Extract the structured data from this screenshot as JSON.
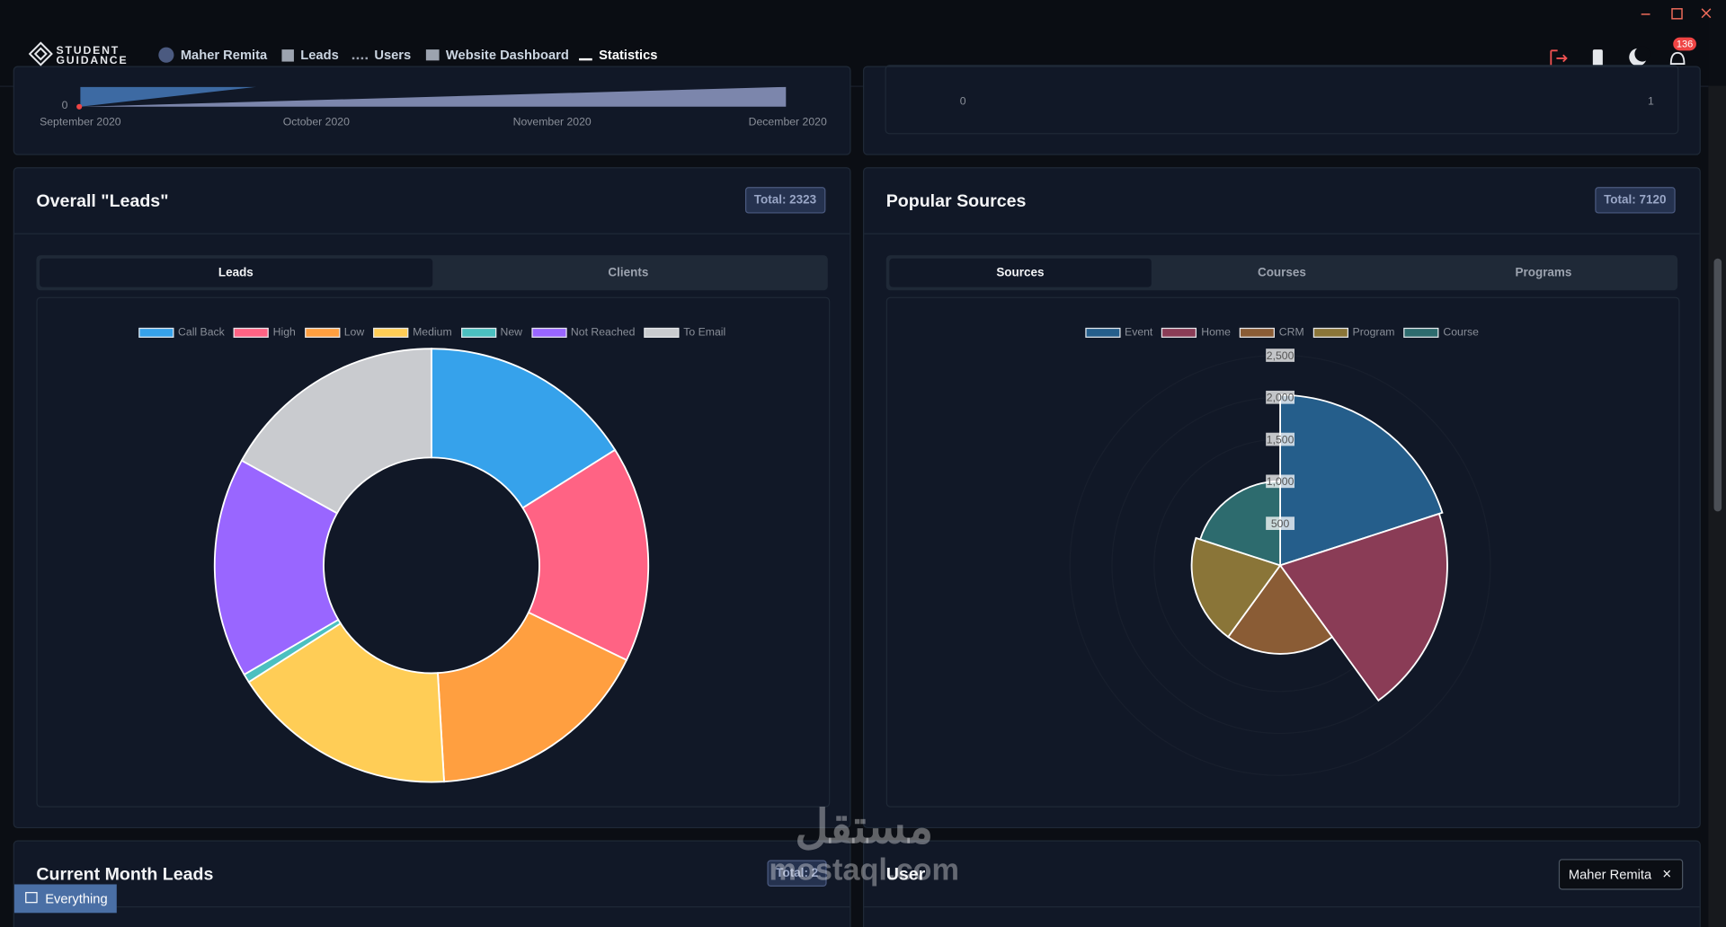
{
  "nav": {
    "brand_top": "STUDENT",
    "brand_bottom": "GUIDANCE",
    "items": [
      "Maher Remita",
      "Leads",
      "Users",
      "Website Dashboard",
      "Statistics"
    ],
    "notifications": "136"
  },
  "top_left": {
    "x_labels": [
      "September 2020",
      "October 2020",
      "November 2020",
      "December 2020"
    ],
    "y_label": "0"
  },
  "top_right": {
    "x_labels": [
      "0",
      "1"
    ]
  },
  "leads_panel": {
    "title": "Overall \"Leads\"",
    "total": "Total: 2323",
    "tabs": [
      "Leads",
      "Clients"
    ],
    "chart_data": {
      "type": "doughnut",
      "categories": [
        "Call Back",
        "High",
        "Low",
        "Medium",
        "New",
        "Not Reached",
        "To Email"
      ],
      "values": [
        373,
        375,
        392,
        392,
        15,
        382,
        394
      ],
      "colors": [
        "#36a2eb",
        "#ff6384",
        "#ff9f40",
        "#ffcd56",
        "#4bc0c0",
        "#9966ff",
        "#c9cbcf"
      ]
    }
  },
  "sources_panel": {
    "title": "Popular Sources",
    "total": "Total: 7120",
    "tabs": [
      "Sources",
      "Courses",
      "Programs"
    ],
    "chart_data": {
      "type": "polarArea",
      "categories": [
        "Event",
        "Home",
        "CRM",
        "Program",
        "Course"
      ],
      "values": [
        2027,
        1987,
        1053,
        1053,
        1000
      ],
      "colors": [
        "#255e8b",
        "#8a3c56",
        "#8a5c35",
        "#8a7538",
        "#2d6b6e"
      ],
      "ylim": [
        0,
        2500
      ],
      "yticks": [
        500,
        {
          "value": 1000,
          "label": "1,000"
        },
        {
          "value": 1500,
          "label": "1,500"
        },
        {
          "value": 2000,
          "label": "2,000"
        },
        {
          "value": 2500,
          "label": "2,500"
        }
      ]
    }
  },
  "current_month": {
    "title": "Current Month Leads",
    "total": "Total: 2"
  },
  "user_panel": {
    "title": "User",
    "filter": "Maher Remita"
  },
  "filter_button": "Everything",
  "watermark": {
    "arabic": "مستقل",
    "latin": "mostaql.com"
  }
}
